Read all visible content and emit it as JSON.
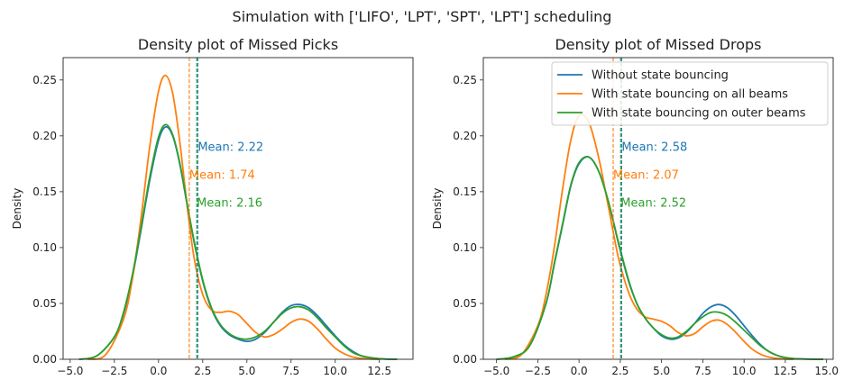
{
  "figure": {
    "suptitle": "Simulation with ['LIFO', 'LPT', 'SPT', 'LPT'] scheduling"
  },
  "colors": {
    "blue": "#1f77b4",
    "orange": "#ff7f0e",
    "green": "#2ca02c"
  },
  "legend": {
    "entries": [
      "Without state bouncing",
      "With state bouncing on all beams",
      "With state bouncing on outer beams"
    ]
  },
  "chart_data": [
    {
      "type": "line",
      "title": "Density plot of Missed Picks",
      "xlabel": "",
      "ylabel": "Density",
      "xlim": [
        -5.4,
        14.4
      ],
      "ylim": [
        0,
        0.27
      ],
      "xticks": [
        -5.0,
        -2.5,
        0.0,
        2.5,
        5.0,
        7.5,
        10.0,
        12.5
      ],
      "xtick_labels": [
        "−5.0",
        "−2.5",
        "0.0",
        "2.5",
        "5.0",
        "7.5",
        "10.0",
        "12.5"
      ],
      "yticks": [
        0.0,
        0.05,
        0.1,
        0.15,
        0.2,
        0.25
      ],
      "ytick_labels": [
        "0.00",
        "0.05",
        "0.10",
        "0.15",
        "0.20",
        "0.25"
      ],
      "series": [
        {
          "name": "Without state bouncing",
          "color": "#1f77b4",
          "mean": 2.22,
          "mean_label": "Mean: 2.22",
          "x": [
            -4.5,
            -3.5,
            -2.5,
            -2.0,
            -1.5,
            -1.0,
            -0.5,
            0.0,
            0.4,
            0.8,
            1.2,
            1.6,
            2.0,
            2.5,
            3.0,
            3.5,
            4.0,
            4.5,
            5.0,
            5.5,
            6.0,
            6.5,
            7.0,
            7.5,
            8.0,
            8.5,
            9.0,
            9.5,
            10.0,
            10.5,
            11.0,
            11.5,
            12.0,
            12.5,
            13.0,
            13.5
          ],
          "y": [
            0.0,
            0.003,
            0.02,
            0.04,
            0.072,
            0.115,
            0.16,
            0.196,
            0.208,
            0.2,
            0.175,
            0.14,
            0.106,
            0.07,
            0.045,
            0.03,
            0.022,
            0.018,
            0.016,
            0.018,
            0.024,
            0.033,
            0.042,
            0.048,
            0.049,
            0.046,
            0.039,
            0.03,
            0.021,
            0.013,
            0.007,
            0.003,
            0.0015,
            0.0005,
            0.0001,
            0.0
          ]
        },
        {
          "name": "With state bouncing on all beams",
          "color": "#ff7f0e",
          "mean": 1.74,
          "mean_label": "Mean: 1.74",
          "x": [
            -4.0,
            -3.0,
            -2.0,
            -1.5,
            -1.0,
            -0.5,
            0.0,
            0.4,
            0.8,
            1.2,
            1.6,
            2.0,
            2.5,
            3.0,
            3.5,
            4.0,
            4.5,
            5.0,
            5.5,
            6.0,
            6.5,
            7.0,
            7.5,
            8.0,
            8.5,
            9.0,
            9.5,
            10.0,
            10.5,
            11.0,
            11.5,
            12.0,
            12.5
          ],
          "y": [
            0.0,
            0.004,
            0.035,
            0.07,
            0.125,
            0.19,
            0.24,
            0.254,
            0.238,
            0.195,
            0.14,
            0.092,
            0.058,
            0.044,
            0.042,
            0.043,
            0.04,
            0.032,
            0.024,
            0.02,
            0.022,
            0.027,
            0.033,
            0.036,
            0.034,
            0.027,
            0.018,
            0.01,
            0.005,
            0.002,
            0.0008,
            0.0002,
            0.0
          ]
        },
        {
          "name": "With state bouncing on outer beams",
          "color": "#2ca02c",
          "mean": 2.16,
          "mean_label": "Mean: 2.16",
          "x": [
            -4.5,
            -3.5,
            -2.5,
            -2.0,
            -1.5,
            -1.0,
            -0.5,
            0.0,
            0.4,
            0.8,
            1.2,
            1.6,
            2.0,
            2.5,
            3.0,
            3.5,
            4.0,
            4.5,
            5.0,
            5.5,
            6.0,
            6.5,
            7.0,
            7.5,
            8.0,
            8.5,
            9.0,
            9.5,
            10.0,
            10.5,
            11.0,
            11.5,
            12.0,
            12.5,
            13.0,
            13.5
          ],
          "y": [
            0.0,
            0.003,
            0.02,
            0.041,
            0.074,
            0.117,
            0.163,
            0.199,
            0.21,
            0.201,
            0.176,
            0.141,
            0.107,
            0.071,
            0.046,
            0.031,
            0.023,
            0.019,
            0.018,
            0.02,
            0.025,
            0.033,
            0.041,
            0.046,
            0.047,
            0.044,
            0.037,
            0.028,
            0.02,
            0.012,
            0.006,
            0.003,
            0.0014,
            0.0005,
            0.0001,
            0.0
          ]
        }
      ]
    },
    {
      "type": "line",
      "title": "Density plot of Missed Drops",
      "xlabel": "",
      "ylabel": "Density",
      "xlim": [
        -5.8,
        15.4
      ],
      "ylim": [
        0,
        0.27
      ],
      "xticks": [
        -5.0,
        -2.5,
        0.0,
        2.5,
        5.0,
        7.5,
        10.0,
        12.5,
        15.0
      ],
      "xtick_labels": [
        "−5.0",
        "−2.5",
        "0.0",
        "2.5",
        "5.0",
        "7.5",
        "10.0",
        "12.5",
        "15.0"
      ],
      "yticks": [
        0.0,
        0.05,
        0.1,
        0.15,
        0.2,
        0.25
      ],
      "ytick_labels": [
        "0.00",
        "0.05",
        "0.10",
        "0.15",
        "0.20",
        "0.25"
      ],
      "legend_loc": "upper right",
      "series": [
        {
          "name": "Without state bouncing",
          "color": "#1f77b4",
          "mean": 2.58,
          "mean_label": "Mean: 2.58",
          "x": [
            -5.0,
            -4.0,
            -3.0,
            -2.0,
            -1.5,
            -1.0,
            -0.5,
            0.0,
            0.6,
            1.2,
            1.8,
            2.4,
            3.0,
            3.5,
            4.0,
            4.5,
            5.0,
            5.5,
            6.0,
            6.5,
            7.0,
            7.5,
            8.0,
            8.5,
            9.0,
            9.5,
            10.0,
            10.5,
            11.0,
            11.5,
            12.0,
            12.5,
            13.0,
            14.0,
            14.8
          ],
          "y": [
            0.0,
            0.002,
            0.012,
            0.05,
            0.085,
            0.12,
            0.155,
            0.175,
            0.181,
            0.168,
            0.14,
            0.103,
            0.07,
            0.05,
            0.037,
            0.028,
            0.021,
            0.018,
            0.019,
            0.024,
            0.032,
            0.041,
            0.047,
            0.049,
            0.046,
            0.039,
            0.03,
            0.021,
            0.013,
            0.007,
            0.0035,
            0.0015,
            0.0006,
            0.0001,
            0.0
          ]
        },
        {
          "name": "With state bouncing on all beams",
          "color": "#ff7f0e",
          "mean": 2.07,
          "mean_label": "Mean: 2.07",
          "x": [
            -4.5,
            -3.5,
            -2.5,
            -2.0,
            -1.5,
            -1.0,
            -0.5,
            0.0,
            0.6,
            1.2,
            1.8,
            2.4,
            3.0,
            3.5,
            4.0,
            4.5,
            5.0,
            5.5,
            6.0,
            6.5,
            7.0,
            7.5,
            8.0,
            8.5,
            9.0,
            9.5,
            10.0,
            10.5,
            11.0,
            11.5,
            12.0,
            12.5,
            13.0
          ],
          "y": [
            0.0,
            0.004,
            0.03,
            0.058,
            0.1,
            0.152,
            0.196,
            0.218,
            0.212,
            0.18,
            0.135,
            0.09,
            0.06,
            0.045,
            0.038,
            0.036,
            0.034,
            0.03,
            0.024,
            0.021,
            0.023,
            0.029,
            0.034,
            0.035,
            0.031,
            0.024,
            0.016,
            0.009,
            0.0045,
            0.002,
            0.0008,
            0.0002,
            0.0
          ]
        },
        {
          "name": "With state bouncing on outer beams",
          "color": "#2ca02c",
          "mean": 2.52,
          "mean_label": "Mean: 2.52",
          "x": [
            -5.0,
            -4.0,
            -3.0,
            -2.0,
            -1.5,
            -1.0,
            -0.5,
            0.0,
            0.6,
            1.2,
            1.8,
            2.4,
            3.0,
            3.5,
            4.0,
            4.5,
            5.0,
            5.5,
            6.0,
            6.5,
            7.0,
            7.5,
            8.0,
            8.5,
            9.0,
            9.5,
            10.0,
            10.5,
            11.0,
            11.5,
            12.0,
            12.5,
            13.0,
            14.0,
            14.8
          ],
          "y": [
            0.0,
            0.002,
            0.012,
            0.05,
            0.086,
            0.121,
            0.156,
            0.176,
            0.181,
            0.168,
            0.14,
            0.104,
            0.071,
            0.05,
            0.037,
            0.028,
            0.022,
            0.019,
            0.02,
            0.025,
            0.032,
            0.038,
            0.042,
            0.042,
            0.039,
            0.033,
            0.026,
            0.019,
            0.012,
            0.007,
            0.0035,
            0.0015,
            0.0006,
            0.0001,
            0.0
          ]
        }
      ]
    }
  ]
}
